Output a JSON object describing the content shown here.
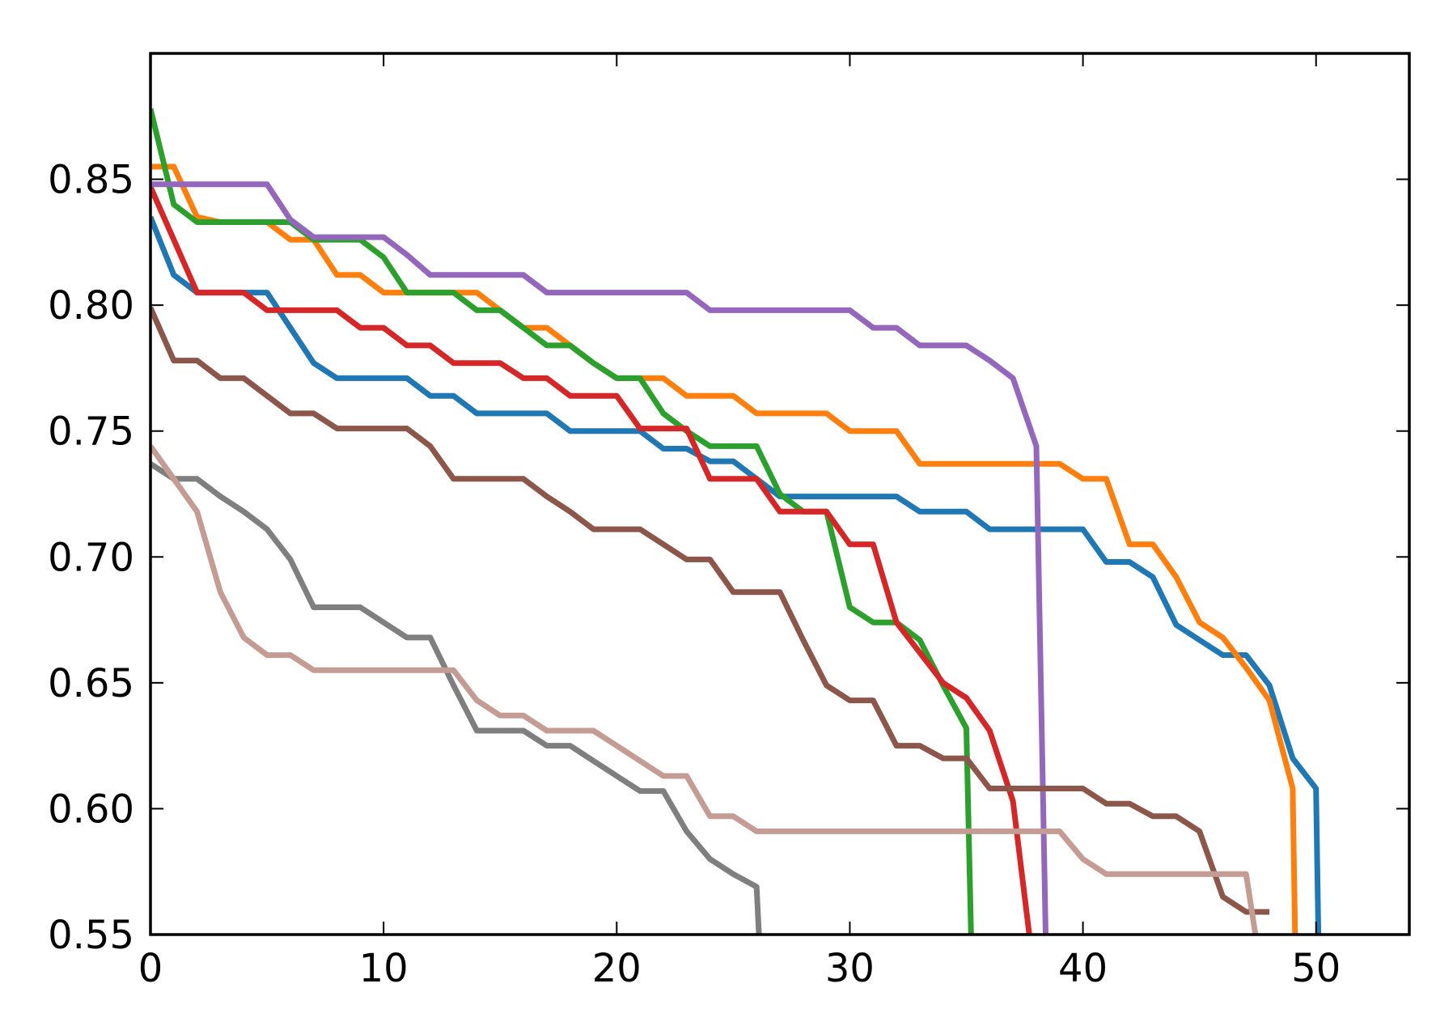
{
  "chart_data": {
    "type": "line",
    "title": "",
    "xlabel": "",
    "ylabel": "",
    "xlim": [
      0,
      54
    ],
    "ylim": [
      0.55,
      0.9
    ],
    "xticks": [
      0,
      10,
      20,
      30,
      40,
      50
    ],
    "xtick_labels": [
      "0",
      "10",
      "20",
      "30",
      "40",
      "50"
    ],
    "yticks": [
      0.55,
      0.6,
      0.65,
      0.7,
      0.75,
      0.8,
      0.85
    ],
    "ytick_labels": [
      "0.55",
      "0.60",
      "0.65",
      "0.70",
      "0.75",
      "0.80",
      "0.85"
    ],
    "grid": false,
    "series": [
      {
        "color": "#1f77b4",
        "x": [
          0,
          1,
          2,
          3,
          4,
          5,
          6,
          7,
          8,
          9,
          10,
          11,
          12,
          13,
          14,
          15,
          16,
          17,
          18,
          19,
          20,
          21,
          22,
          23,
          24,
          25,
          26,
          27,
          28,
          29,
          30,
          31,
          32,
          33,
          34,
          35,
          36,
          37,
          38,
          39,
          40,
          41,
          42,
          43,
          44,
          45,
          46,
          47,
          48,
          49,
          50,
          50.1
        ],
        "y": [
          0.835,
          0.812,
          0.805,
          0.805,
          0.805,
          0.805,
          0.791,
          0.777,
          0.771,
          0.771,
          0.771,
          0.771,
          0.764,
          0.764,
          0.757,
          0.757,
          0.757,
          0.757,
          0.75,
          0.75,
          0.75,
          0.75,
          0.743,
          0.743,
          0.738,
          0.738,
          0.731,
          0.724,
          0.724,
          0.724,
          0.724,
          0.724,
          0.724,
          0.718,
          0.718,
          0.718,
          0.711,
          0.711,
          0.711,
          0.711,
          0.711,
          0.698,
          0.698,
          0.692,
          0.673,
          0.667,
          0.661,
          0.661,
          0.649,
          0.62,
          0.608,
          0.55
        ]
      },
      {
        "color": "#ff7f0e",
        "x": [
          0,
          1,
          2,
          3,
          4,
          5,
          6,
          7,
          8,
          9,
          10,
          11,
          12,
          13,
          14,
          15,
          16,
          17,
          18,
          19,
          20,
          21,
          22,
          23,
          24,
          25,
          26,
          27,
          28,
          29,
          30,
          31,
          32,
          33,
          34,
          35,
          36,
          37,
          38,
          39,
          40,
          41,
          42,
          43,
          44,
          45,
          46,
          47,
          48,
          49,
          49.1
        ],
        "y": [
          0.855,
          0.855,
          0.835,
          0.833,
          0.833,
          0.833,
          0.826,
          0.826,
          0.812,
          0.812,
          0.805,
          0.805,
          0.805,
          0.805,
          0.805,
          0.798,
          0.791,
          0.791,
          0.784,
          0.777,
          0.771,
          0.771,
          0.771,
          0.764,
          0.764,
          0.764,
          0.757,
          0.757,
          0.757,
          0.757,
          0.75,
          0.75,
          0.75,
          0.737,
          0.737,
          0.737,
          0.737,
          0.737,
          0.737,
          0.737,
          0.731,
          0.731,
          0.705,
          0.705,
          0.692,
          0.674,
          0.668,
          0.656,
          0.643,
          0.608,
          0.55
        ]
      },
      {
        "color": "#2ca02c",
        "x": [
          0,
          1,
          2,
          3,
          4,
          5,
          6,
          7,
          8,
          9,
          10,
          11,
          12,
          13,
          14,
          15,
          16,
          17,
          18,
          19,
          20,
          21,
          22,
          23,
          24,
          25,
          26,
          27,
          28,
          29,
          30,
          31,
          32,
          33,
          34,
          35,
          35.2
        ],
        "y": [
          0.878,
          0.84,
          0.833,
          0.833,
          0.833,
          0.833,
          0.833,
          0.826,
          0.826,
          0.826,
          0.819,
          0.805,
          0.805,
          0.805,
          0.798,
          0.798,
          0.791,
          0.784,
          0.784,
          0.777,
          0.771,
          0.771,
          0.757,
          0.75,
          0.744,
          0.744,
          0.744,
          0.725,
          0.718,
          0.718,
          0.68,
          0.674,
          0.674,
          0.667,
          0.649,
          0.632,
          0.55
        ]
      },
      {
        "color": "#d62728",
        "x": [
          0,
          1,
          2,
          3,
          4,
          5,
          6,
          7,
          8,
          9,
          10,
          11,
          12,
          13,
          14,
          15,
          16,
          17,
          18,
          19,
          20,
          21,
          22,
          23,
          24,
          25,
          26,
          27,
          28,
          29,
          30,
          31,
          32,
          33,
          34,
          35,
          36,
          37,
          37.7
        ],
        "y": [
          0.847,
          0.826,
          0.805,
          0.805,
          0.805,
          0.798,
          0.798,
          0.798,
          0.798,
          0.791,
          0.791,
          0.784,
          0.784,
          0.777,
          0.777,
          0.777,
          0.771,
          0.771,
          0.764,
          0.764,
          0.764,
          0.751,
          0.751,
          0.751,
          0.731,
          0.731,
          0.731,
          0.718,
          0.718,
          0.718,
          0.705,
          0.705,
          0.674,
          0.662,
          0.65,
          0.644,
          0.631,
          0.603,
          0.55
        ]
      },
      {
        "color": "#9467bd",
        "x": [
          0,
          1,
          2,
          3,
          4,
          5,
          6,
          7,
          8,
          9,
          10,
          11,
          12,
          13,
          14,
          15,
          16,
          17,
          18,
          19,
          20,
          21,
          22,
          23,
          24,
          25,
          26,
          27,
          28,
          29,
          30,
          31,
          32,
          33,
          34,
          35,
          36,
          37,
          38,
          38.4
        ],
        "y": [
          0.848,
          0.848,
          0.848,
          0.848,
          0.848,
          0.848,
          0.834,
          0.827,
          0.827,
          0.827,
          0.827,
          0.82,
          0.812,
          0.812,
          0.812,
          0.812,
          0.812,
          0.805,
          0.805,
          0.805,
          0.805,
          0.805,
          0.805,
          0.805,
          0.798,
          0.798,
          0.798,
          0.798,
          0.798,
          0.798,
          0.798,
          0.791,
          0.791,
          0.784,
          0.784,
          0.784,
          0.778,
          0.771,
          0.744,
          0.55
        ]
      },
      {
        "color": "#8c564b",
        "x": [
          0,
          1,
          2,
          3,
          4,
          5,
          6,
          7,
          8,
          9,
          10,
          11,
          12,
          13,
          14,
          15,
          16,
          17,
          18,
          19,
          20,
          21,
          22,
          23,
          24,
          25,
          26,
          27,
          28,
          29,
          30,
          31,
          32,
          33,
          34,
          35,
          36,
          37,
          38,
          39,
          40,
          41,
          42,
          43,
          44,
          45,
          46,
          47,
          48
        ],
        "y": [
          0.799,
          0.778,
          0.778,
          0.771,
          0.771,
          0.764,
          0.757,
          0.757,
          0.751,
          0.751,
          0.751,
          0.751,
          0.744,
          0.731,
          0.731,
          0.731,
          0.731,
          0.724,
          0.718,
          0.711,
          0.711,
          0.711,
          0.705,
          0.699,
          0.699,
          0.686,
          0.686,
          0.686,
          0.667,
          0.649,
          0.643,
          0.643,
          0.625,
          0.625,
          0.62,
          0.62,
          0.608,
          0.608,
          0.608,
          0.608,
          0.608,
          0.602,
          0.602,
          0.597,
          0.597,
          0.591,
          0.565,
          0.559,
          0.559
        ]
      },
      {
        "color": "#7f7f7f",
        "x": [
          0,
          1,
          2,
          3,
          4,
          5,
          6,
          7,
          8,
          9,
          10,
          11,
          12,
          13,
          14,
          15,
          16,
          17,
          18,
          19,
          20,
          21,
          22,
          23,
          24,
          25,
          26,
          26.1
        ],
        "y": [
          0.737,
          0.731,
          0.731,
          0.724,
          0.718,
          0.711,
          0.699,
          0.68,
          0.68,
          0.68,
          0.674,
          0.668,
          0.668,
          0.649,
          0.631,
          0.631,
          0.631,
          0.625,
          0.625,
          0.619,
          0.613,
          0.607,
          0.607,
          0.591,
          0.58,
          0.574,
          0.569,
          0.55
        ]
      },
      {
        "color": "#c49c94",
        "x": [
          0,
          1,
          2,
          3,
          4,
          5,
          6,
          7,
          8,
          9,
          10,
          11,
          12,
          13,
          14,
          15,
          16,
          17,
          18,
          19,
          20,
          21,
          22,
          23,
          24,
          25,
          26,
          27,
          28,
          29,
          30,
          31,
          32,
          33,
          34,
          35,
          36,
          37,
          38,
          39,
          40,
          41,
          42,
          43,
          44,
          45,
          46,
          47,
          47.4
        ],
        "y": [
          0.744,
          0.731,
          0.718,
          0.686,
          0.668,
          0.661,
          0.661,
          0.655,
          0.655,
          0.655,
          0.655,
          0.655,
          0.655,
          0.655,
          0.643,
          0.637,
          0.637,
          0.631,
          0.631,
          0.631,
          0.625,
          0.619,
          0.613,
          0.613,
          0.597,
          0.597,
          0.591,
          0.591,
          0.591,
          0.591,
          0.591,
          0.591,
          0.591,
          0.591,
          0.591,
          0.591,
          0.591,
          0.591,
          0.591,
          0.591,
          0.58,
          0.574,
          0.574,
          0.574,
          0.574,
          0.574,
          0.574,
          0.574,
          0.55
        ]
      }
    ]
  }
}
